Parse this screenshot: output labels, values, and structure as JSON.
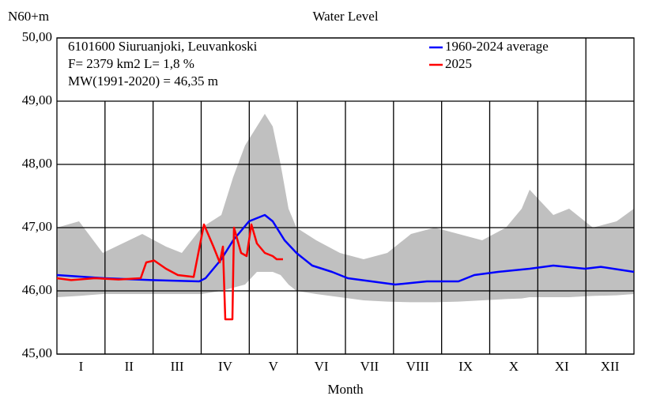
{
  "chart_data": {
    "type": "line",
    "title": "Water Level",
    "y_label": "N60+m",
    "x_label": "Month",
    "annotations": [
      "6101600 Siuruanjoki, Leuvankoski",
      "F=   2379 km2 L=  1,8 %",
      "MW(1991-2020) = 46,35 m"
    ],
    "categories": [
      "I",
      "II",
      "III",
      "IV",
      "V",
      "VI",
      "VII",
      "VIII",
      "IX",
      "X",
      "XI",
      "XII"
    ],
    "xlim": [
      0,
      365
    ],
    "ylim": [
      45,
      50
    ],
    "yticks": [
      {
        "value": 45,
        "label": "45,00"
      },
      {
        "value": 46,
        "label": "46,00"
      },
      {
        "value": 47,
        "label": "47,00"
      },
      {
        "value": 48,
        "label": "48,00"
      },
      {
        "value": 49,
        "label": "49,00"
      },
      {
        "value": 50,
        "label": "50,00"
      }
    ],
    "grid": true,
    "legend": "upper right",
    "band": {
      "color": "#c0c0c0",
      "x": [
        0,
        14,
        29,
        54,
        69,
        79,
        91.5,
        104,
        111.5,
        119,
        126.5,
        131.5,
        136.5,
        141.5,
        146.5,
        151.5,
        164,
        179,
        194,
        209,
        224,
        239,
        254,
        269,
        284,
        294,
        299,
        314,
        324,
        339,
        354,
        365
      ],
      "upper": [
        47.0,
        47.1,
        46.6,
        46.9,
        46.7,
        46.6,
        47.0,
        47.2,
        47.8,
        48.3,
        48.6,
        48.8,
        48.6,
        48.0,
        47.3,
        47.0,
        46.8,
        46.6,
        46.5,
        46.6,
        46.9,
        47.0,
        46.9,
        46.8,
        47.0,
        47.3,
        47.6,
        47.2,
        47.3,
        47.0,
        47.1,
        47.3
      ],
      "lower": [
        45.9,
        45.92,
        45.95,
        45.95,
        45.95,
        45.95,
        45.95,
        46.0,
        46.05,
        46.1,
        46.3,
        46.3,
        46.3,
        46.25,
        46.1,
        46.0,
        45.95,
        45.9,
        45.85,
        45.83,
        45.82,
        45.82,
        45.83,
        45.85,
        45.87,
        45.88,
        45.9,
        45.9,
        45.9,
        45.92,
        45.93,
        45.95
      ]
    },
    "series": [
      {
        "name": "1960-2024 average",
        "color": "#0000ff",
        "x": [
          0,
          30,
          60,
          90,
          94,
          104,
          111.5,
          121.5,
          131.5,
          136.5,
          144,
          151.5,
          161.5,
          174,
          184,
          199,
          214,
          234,
          254,
          264,
          279,
          299,
          314,
          334,
          344,
          365
        ],
        "values": [
          46.25,
          46.2,
          46.17,
          46.15,
          46.2,
          46.5,
          46.8,
          47.1,
          47.2,
          47.1,
          46.8,
          46.6,
          46.4,
          46.3,
          46.2,
          46.15,
          46.1,
          46.15,
          46.15,
          46.25,
          46.3,
          46.35,
          46.4,
          46.35,
          46.38,
          46.3
        ]
      },
      {
        "name": "2025",
        "color": "#ff0000",
        "x": [
          0,
          9,
          24,
          39,
          53,
          56.5,
          61.5,
          69,
          76.5,
          86.5,
          93,
          99,
          103,
          105,
          106.5,
          111,
          112,
          116.5,
          120,
          123,
          126.5,
          131.5,
          136.5,
          139,
          143
        ],
        "values": [
          46.2,
          46.17,
          46.2,
          46.18,
          46.2,
          46.45,
          46.48,
          46.35,
          46.25,
          46.22,
          47.05,
          46.7,
          46.45,
          46.7,
          45.55,
          45.55,
          47.0,
          46.6,
          46.55,
          47.05,
          46.75,
          46.6,
          46.55,
          46.5,
          46.5
        ]
      }
    ]
  }
}
